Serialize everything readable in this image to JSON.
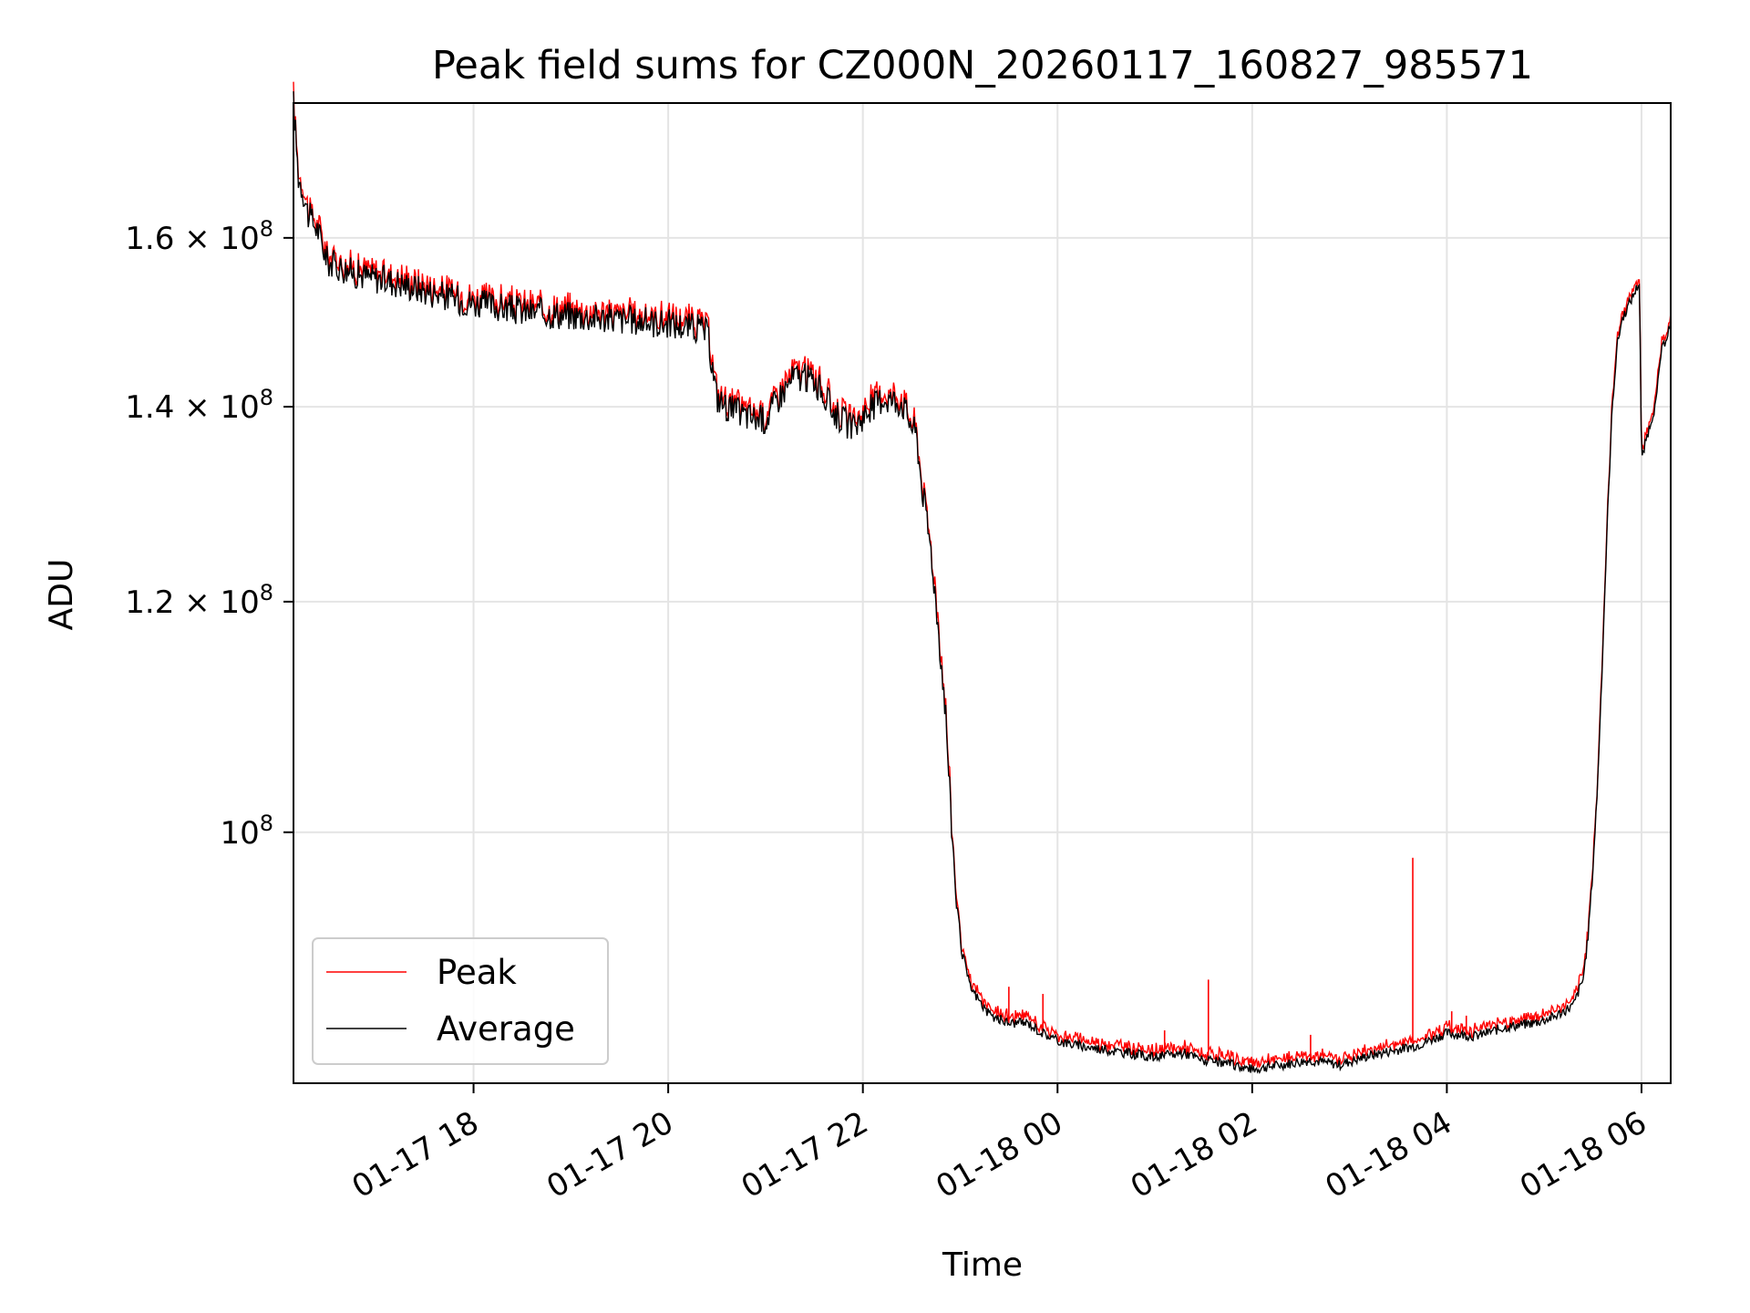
{
  "chart_data": {
    "type": "line",
    "title": "Peak field sums for CZ000N_20260117_160827_985571",
    "xlabel": "Time",
    "ylabel": "ADU",
    "yscale": "log",
    "grid": true,
    "legend_position": "lower-left",
    "xlim": [
      16.15,
      30.3
    ],
    "ylim": [
      82000000,
      178000000
    ],
    "x_unit": "hours since 01-17 00:00",
    "x_ticks": [
      {
        "value": 18,
        "label": "01-17 18"
      },
      {
        "value": 20,
        "label": "01-17 20"
      },
      {
        "value": 22,
        "label": "01-17 22"
      },
      {
        "value": 24,
        "label": "01-18 00"
      },
      {
        "value": 26,
        "label": "01-18 02"
      },
      {
        "value": 28,
        "label": "01-18 04"
      },
      {
        "value": 30,
        "label": "01-18 06"
      }
    ],
    "y_ticks": [
      {
        "value": 100000000,
        "mantissa": "10",
        "exponent": "8"
      },
      {
        "value": 120000000,
        "mantissa": "1.2 × 10",
        "exponent": "8"
      },
      {
        "value": 140000000,
        "mantissa": "1.4 × 10",
        "exponent": "8"
      },
      {
        "value": 160000000,
        "mantissa": "1.6 × 10",
        "exponent": "8"
      }
    ],
    "series": [
      {
        "name": "Peak",
        "color": "#ff0000",
        "spikes": [
          {
            "x": 23.5,
            "y": 88500000
          },
          {
            "x": 23.85,
            "y": 88000000
          },
          {
            "x": 25.1,
            "y": 85500000
          },
          {
            "x": 25.55,
            "y": 89000000
          },
          {
            "x": 26.6,
            "y": 85200000
          },
          {
            "x": 27.65,
            "y": 98000000
          },
          {
            "x": 28.05,
            "y": 86800000
          },
          {
            "x": 28.2,
            "y": 86500000
          },
          {
            "x": 29.0,
            "y": 86300000
          }
        ]
      },
      {
        "name": "Average",
        "color": "#000000",
        "points": [
          [
            16.15,
            178000000
          ],
          [
            16.2,
            168000000
          ],
          [
            16.25,
            166000000
          ],
          [
            16.3,
            163000000
          ],
          [
            16.4,
            161000000
          ],
          [
            16.5,
            157000000
          ],
          [
            16.6,
            156500000
          ],
          [
            16.8,
            155500000
          ],
          [
            17.0,
            155000000
          ],
          [
            17.2,
            154500000
          ],
          [
            17.5,
            153500000
          ],
          [
            17.8,
            152500000
          ],
          [
            18.0,
            152000000
          ],
          [
            18.5,
            151000000
          ],
          [
            19.0,
            150500000
          ],
          [
            19.5,
            150000000
          ],
          [
            20.0,
            149500000
          ],
          [
            20.3,
            149000000
          ],
          [
            20.4,
            148500000
          ],
          [
            20.5,
            141000000
          ],
          [
            20.6,
            140000000
          ],
          [
            20.8,
            139000000
          ],
          [
            21.0,
            138500000
          ],
          [
            21.1,
            140500000
          ],
          [
            21.3,
            143500000
          ],
          [
            21.5,
            143000000
          ],
          [
            21.7,
            139500000
          ],
          [
            21.9,
            137500000
          ],
          [
            22.0,
            139000000
          ],
          [
            22.2,
            141000000
          ],
          [
            22.4,
            140500000
          ],
          [
            22.5,
            138000000
          ],
          [
            22.55,
            137000000
          ],
          [
            22.6,
            132000000
          ],
          [
            22.7,
            125000000
          ],
          [
            22.75,
            120000000
          ],
          [
            22.8,
            115000000
          ],
          [
            22.85,
            110000000
          ],
          [
            22.9,
            102000000
          ],
          [
            22.95,
            96000000
          ],
          [
            23.0,
            91500000
          ],
          [
            23.1,
            88500000
          ],
          [
            23.3,
            86500000
          ],
          [
            23.5,
            86000000
          ],
          [
            23.7,
            86000000
          ],
          [
            23.8,
            85500000
          ],
          [
            24.0,
            84800000
          ],
          [
            24.2,
            84500000
          ],
          [
            24.5,
            84200000
          ],
          [
            24.8,
            83900000
          ],
          [
            25.0,
            83700000
          ],
          [
            25.3,
            84000000
          ],
          [
            25.5,
            83500000
          ],
          [
            25.8,
            83200000
          ],
          [
            26.0,
            82900000
          ],
          [
            26.3,
            83200000
          ],
          [
            26.6,
            83500000
          ],
          [
            26.9,
            83200000
          ],
          [
            27.2,
            83800000
          ],
          [
            27.5,
            84200000
          ],
          [
            27.7,
            84500000
          ],
          [
            28.0,
            85300000
          ],
          [
            28.3,
            85100000
          ],
          [
            28.6,
            85700000
          ],
          [
            28.9,
            86000000
          ],
          [
            29.1,
            86400000
          ],
          [
            29.3,
            87200000
          ],
          [
            29.4,
            89000000
          ],
          [
            29.45,
            92000000
          ],
          [
            29.5,
            97000000
          ],
          [
            29.55,
            104000000
          ],
          [
            29.6,
            115000000
          ],
          [
            29.65,
            128000000
          ],
          [
            29.7,
            140000000
          ],
          [
            29.75,
            147000000
          ],
          [
            29.8,
            150000000
          ],
          [
            29.9,
            152500000
          ],
          [
            29.98,
            154500000
          ],
          [
            30.0,
            134000000
          ],
          [
            30.05,
            136500000
          ],
          [
            30.1,
            138500000
          ],
          [
            30.15,
            140500000
          ],
          [
            30.2,
            146000000
          ],
          [
            30.3,
            149500000
          ]
        ]
      }
    ]
  }
}
